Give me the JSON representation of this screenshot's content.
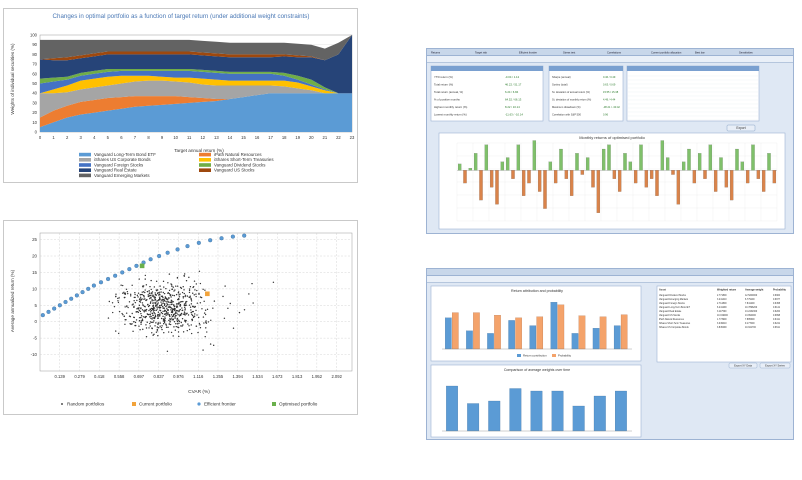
{
  "panel1": {
    "title": "Changes in optimal portfolio as a function of target return (under additional weight constraints)",
    "ylabel": "Weights of individual securities (%)",
    "xlabel": "Target annual return (%)",
    "yticks": [
      "0",
      "10",
      "20",
      "30",
      "40",
      "50",
      "60",
      "70",
      "80",
      "90",
      "100"
    ],
    "xticks": [
      "0",
      "1",
      "2",
      "3",
      "4",
      "5",
      "6",
      "7",
      "8",
      "9",
      "10",
      "11",
      "12",
      "13",
      "14",
      "15",
      "16",
      "17",
      "18",
      "19",
      "20",
      "21",
      "22",
      "23"
    ],
    "legend": [
      {
        "label": "Vanguard Long-Term Bond ETF",
        "color": "#5b9bd5"
      },
      {
        "label": "iPath Natural Resources",
        "color": "#ed7d31"
      },
      {
        "label": "iShares US Corporate Bonds",
        "color": "#a5a5a5"
      },
      {
        "label": "iShares Short-Term Treasuries",
        "color": "#ffc000"
      },
      {
        "label": "Vanguard Foreign Stocks",
        "color": "#4472c4"
      },
      {
        "label": "Vanguard Dividend Stocks",
        "color": "#70ad47"
      },
      {
        "label": "Vanguard Real Estate",
        "color": "#264478"
      },
      {
        "label": "Vanguard US Stocks",
        "color": "#9e480e"
      },
      {
        "label": "Vanguard Emerging Markets",
        "color": "#636363"
      }
    ]
  },
  "panel2": {
    "ylabel": "Average annualized return (%)",
    "xlabel": "CVAR (%)",
    "yticks": [
      "25",
      "20",
      "15",
      "10",
      "5",
      "0",
      "-5",
      "-10"
    ],
    "xticks": [
      "0.139",
      "0.279",
      "0.418",
      "0.558",
      "0.697",
      "0.837",
      "0.976",
      "1.116",
      "1.255",
      "1.394",
      "1.534",
      "1.673",
      "1.813",
      "1.952",
      "2.092"
    ],
    "legend": [
      {
        "label": "Random portfolios",
        "color": "#222222"
      },
      {
        "label": "Current portfolio",
        "color": "#f2a33a"
      },
      {
        "label": "Efficient frontier",
        "color": "#5b9bd5"
      },
      {
        "label": "Optimised portfolio",
        "color": "#6ab04c"
      }
    ]
  },
  "panel3": {
    "chart_title": "Monthly returns of optimised portfolio",
    "button": "Export",
    "stat_box_left": [
      {
        "k": "YTD return (%)",
        "v": "-0.04 / 1.12"
      },
      {
        "k": "Total return (%)",
        "v": "46.22 / 51.17"
      },
      {
        "k": "Total return (annual, %)",
        "v": "6.24 / 6.84"
      },
      {
        "k": "% of positive months",
        "v": "64.52 / 66.13"
      },
      {
        "k": "Highest monthly return (%)",
        "v": "8.22 / 10.14"
      },
      {
        "k": "Lowest monthly return (%)",
        "v": "-11.63 / -10.14"
      }
    ],
    "stat_box_mid": [
      {
        "k": "Sharpe (annual)",
        "v": "0.46 / 0.49"
      },
      {
        "k": "Sortino (total)",
        "v": "0.63 / 0.69"
      },
      {
        "k": "St. deviation of annual return (%)",
        "v": "15.55 / 15.38"
      },
      {
        "k": "St. deviation of monthly return (%)",
        "v": "4.49 / 4.44"
      },
      {
        "k": "Maximum drawdown (%)",
        "v": "-38.21 / -33.42"
      },
      {
        "k": "Correlation with S&P 500",
        "v": "0.96"
      }
    ],
    "tab_labels": [
      "Returns",
      "Target risk",
      "Efficient frontier",
      "Stress test",
      "Correlations",
      "Current portfolio allocation",
      "Best bar",
      "Sensitivities"
    ]
  },
  "panel4": {
    "chart1_title": "Return attribution and probability",
    "chart1_legend": [
      "Return contribution",
      "Probability"
    ],
    "chart2_title": "Comparison of average weights over time",
    "buttons": [
      "Export XY Data",
      "Export XY Series"
    ],
    "table_headers": [
      "Asset",
      "Weighted return",
      "Average weight",
      "Probability"
    ],
    "table_rows": [
      [
        "Vanguard Dividend Stocks",
        "2.771800",
        "12.5200000",
        "0.6900"
      ],
      [
        "Vanguard Emerging Markets",
        "3.241410",
        "6.779100",
        "0.6977"
      ],
      [
        "Vanguard Foreign Stocks",
        "2.714800",
        "7.841200",
        "0.6458"
      ],
      [
        "Vanguard Long-Term Bond ET",
        "6.241290",
        "10.7896200",
        "0.6141"
      ],
      [
        "Vanguard Real Estate",
        "3.117500",
        "13.2432300",
        "0.6200"
      ],
      [
        "Vanguard US Stocks",
        "10.019000",
        "13.894000",
        "0.6898"
      ],
      [
        "iPath Natural Resources",
        "1.773900",
        "7.885600",
        "0.6411"
      ],
      [
        "iShares Short-Term Treasuries",
        "3.049010",
        "9.177000",
        "0.6241"
      ],
      [
        "iShares US Corporate Bonds",
        "3.845490",
        "10.941700",
        "0.6611"
      ]
    ]
  },
  "chart_data": [
    {
      "type": "area",
      "title": "Changes in optimal portfolio as a function of target return (under additional weight constraints)",
      "xlabel": "Target annual return (%)",
      "ylabel": "Weights of individual securities (%)",
      "x": [
        0,
        1,
        2,
        3,
        4,
        5,
        6,
        7,
        8,
        9,
        10,
        11,
        12,
        13,
        14,
        15,
        16,
        17,
        18,
        19,
        20,
        21,
        22,
        23
      ],
      "ylim": [
        0,
        100
      ],
      "series": [
        {
          "name": "Vanguard Long-Term Bond ETF",
          "values": [
            5,
            10,
            15,
            18,
            20,
            22,
            24,
            26,
            27,
            28,
            29,
            30,
            31,
            32,
            34,
            36,
            38,
            40,
            40,
            40,
            40,
            40,
            40,
            40
          ]
        },
        {
          "name": "iPath Natural Resources",
          "values": [
            10,
            12,
            12,
            13,
            13,
            13,
            12,
            11,
            10,
            9,
            8,
            6,
            4,
            2,
            0,
            0,
            0,
            0,
            0,
            0,
            0,
            0,
            0,
            0
          ]
        },
        {
          "name": "iShares US Corporate Bonds",
          "values": [
            25,
            18,
            14,
            13,
            13,
            13,
            14,
            15,
            16,
            16,
            15,
            15,
            14,
            14,
            14,
            12,
            10,
            8,
            7,
            5,
            3,
            0,
            0,
            0
          ]
        },
        {
          "name": "iShares Short-Term Treasuries",
          "values": [
            0,
            4,
            7,
            9,
            9,
            9,
            8,
            6,
            5,
            4,
            4,
            5,
            6,
            6,
            5,
            5,
            5,
            5,
            6,
            6,
            4,
            3,
            0,
            0
          ]
        },
        {
          "name": "Vanguard Foreign Stocks",
          "values": [
            10,
            8,
            6,
            5,
            5,
            5,
            5,
            5,
            5,
            6,
            7,
            7,
            7,
            7,
            7,
            7,
            7,
            7,
            5,
            3,
            2,
            1,
            0,
            0
          ]
        },
        {
          "name": "Vanguard Dividend Stocks",
          "values": [
            5,
            4,
            3,
            3,
            3,
            3,
            2,
            2,
            2,
            2,
            2,
            2,
            2,
            2,
            2,
            2,
            2,
            2,
            3,
            4,
            5,
            2,
            0,
            0
          ]
        },
        {
          "name": "Vanguard Real Estate",
          "values": [
            20,
            18,
            17,
            15,
            15,
            15,
            15,
            15,
            15,
            15,
            15,
            15,
            15,
            15,
            15,
            15,
            15,
            15,
            17,
            19,
            23,
            28,
            40,
            60
          ]
        },
        {
          "name": "Vanguard US Stocks",
          "values": [
            0,
            2,
            3,
            3,
            3,
            3,
            3,
            3,
            3,
            3,
            3,
            3,
            3,
            3,
            3,
            3,
            3,
            3,
            2,
            2,
            1,
            0,
            0,
            0
          ]
        },
        {
          "name": "Vanguard Emerging Markets",
          "values": [
            20,
            19,
            18,
            16,
            14,
            12,
            12,
            12,
            12,
            12,
            12,
            12,
            12,
            12,
            12,
            12,
            12,
            12,
            12,
            12,
            12,
            12,
            12,
            0
          ]
        }
      ],
      "grid": true,
      "legend": "bottom"
    },
    {
      "type": "scatter",
      "xlabel": "CVAR (%)",
      "ylabel": "Average annualized return (%)",
      "xlim": [
        0,
        2.2
      ],
      "ylim": [
        -15,
        27
      ],
      "series": [
        {
          "name": "Efficient frontier",
          "points": [
            [
              0.02,
              2
            ],
            [
              0.06,
              3
            ],
            [
              0.1,
              4
            ],
            [
              0.14,
              5
            ],
            [
              0.18,
              6
            ],
            [
              0.22,
              7
            ],
            [
              0.26,
              8
            ],
            [
              0.3,
              9
            ],
            [
              0.34,
              10
            ],
            [
              0.38,
              11
            ],
            [
              0.43,
              12
            ],
            [
              0.48,
              13
            ],
            [
              0.53,
              14
            ],
            [
              0.58,
              15
            ],
            [
              0.63,
              16
            ],
            [
              0.68,
              17
            ],
            [
              0.73,
              18
            ],
            [
              0.78,
              19
            ],
            [
              0.84,
              20
            ],
            [
              0.9,
              21
            ],
            [
              0.97,
              22
            ],
            [
              1.04,
              23
            ],
            [
              1.12,
              24
            ],
            [
              1.2,
              24.8
            ],
            [
              1.28,
              25.4
            ],
            [
              1.36,
              25.9
            ],
            [
              1.44,
              26.2
            ]
          ]
        },
        {
          "name": "Current portfolio",
          "points": [
            [
              1.18,
              8.5
            ]
          ]
        },
        {
          "name": "Optimised portfolio",
          "points": [
            [
              0.72,
              17
            ]
          ]
        }
      ],
      "grid": true,
      "legend": "bottom"
    },
    {
      "type": "bar",
      "title": "Monthly returns of optimised portfolio",
      "values": [
        1.5,
        -3,
        0.5,
        4,
        -7,
        6,
        -4,
        -8,
        2,
        3,
        -2,
        6,
        -6,
        -3,
        7,
        -5,
        -9,
        2,
        -3,
        5,
        -2,
        -6,
        4,
        -1,
        3,
        -4,
        -10,
        5,
        6,
        -2,
        -5,
        4,
        2,
        -3,
        6,
        -4,
        -2,
        -6,
        7,
        3,
        -1,
        -8,
        2,
        5,
        -3,
        4,
        -2,
        6,
        -5,
        3,
        -4,
        -7,
        5,
        2,
        -3,
        6,
        -2,
        -5,
        4,
        -3
      ],
      "grid": true
    }
  ]
}
